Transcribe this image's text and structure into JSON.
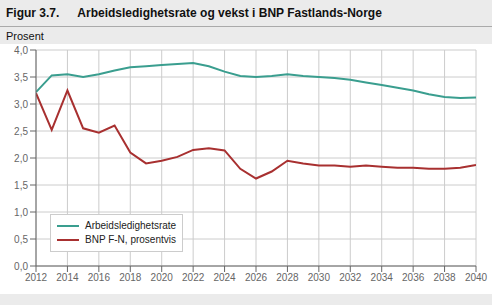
{
  "chart_data": {
    "type": "line",
    "title": "Figur 3.7.",
    "subtitle": "Arbeidsledighetsrate og vekst i BNP Fastlands-Norge",
    "ylabel": "Prosent",
    "x": [
      2012,
      2013,
      2014,
      2015,
      2016,
      2017,
      2018,
      2019,
      2020,
      2021,
      2022,
      2023,
      2024,
      2025,
      2026,
      2027,
      2028,
      2029,
      2030,
      2031,
      2032,
      2033,
      2034,
      2035,
      2036,
      2037,
      2038,
      2039,
      2040
    ],
    "series": [
      {
        "name": "Arbeidsledighetsrate",
        "color": "#3a9e8f",
        "values": [
          3.22,
          3.53,
          3.55,
          3.5,
          3.55,
          3.62,
          3.68,
          3.7,
          3.72,
          3.74,
          3.76,
          3.7,
          3.6,
          3.52,
          3.5,
          3.52,
          3.55,
          3.52,
          3.5,
          3.48,
          3.45,
          3.4,
          3.35,
          3.3,
          3.25,
          3.18,
          3.13,
          3.11,
          3.12
        ]
      },
      {
        "name": "BNP F-N, prosentvis",
        "color": "#a83030",
        "values": [
          3.2,
          2.52,
          3.25,
          2.55,
          2.47,
          2.6,
          2.1,
          1.9,
          1.95,
          2.02,
          2.15,
          2.18,
          2.14,
          1.8,
          1.62,
          1.75,
          1.95,
          1.9,
          1.86,
          1.86,
          1.84,
          1.86,
          1.84,
          1.82,
          1.82,
          1.8,
          1.8,
          1.82,
          1.87
        ]
      }
    ],
    "xlim": [
      2012,
      2040
    ],
    "xticks": [
      2012,
      2014,
      2016,
      2018,
      2020,
      2022,
      2024,
      2026,
      2028,
      2030,
      2032,
      2034,
      2036,
      2038,
      2040
    ],
    "ylim": [
      0.0,
      4.0
    ],
    "yticks": [
      {
        "value": 0.0,
        "label": "0,0"
      },
      {
        "value": 0.5,
        "label": "0,5"
      },
      {
        "value": 1.0,
        "label": "1,0"
      },
      {
        "value": 1.5,
        "label": "1,5"
      },
      {
        "value": 2.0,
        "label": "2,0"
      },
      {
        "value": 2.5,
        "label": "2,5"
      },
      {
        "value": 3.0,
        "label": "3,0"
      },
      {
        "value": 3.5,
        "label": "3,5"
      },
      {
        "value": 4.0,
        "label": "4,0"
      }
    ],
    "grid": true,
    "legend": "lower left"
  }
}
